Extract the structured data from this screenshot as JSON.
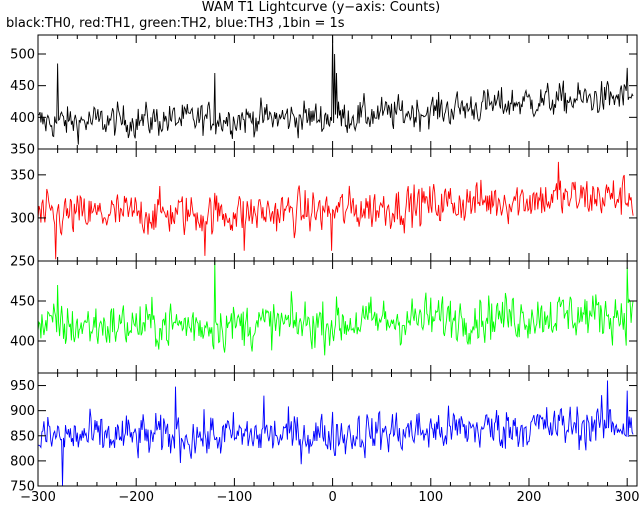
{
  "title": "WAM T1 Lightcurve (y−axis: Counts)",
  "subtitle": "black:TH0, red:TH1, green:TH2, blue:TH3 ,1bin = 1s",
  "chart_data": [
    {
      "type": "line",
      "series": [
        {
          "name": "TH0",
          "color": "#000000",
          "trend": [
            [
              -300,
              392
            ],
            [
              -200,
              395
            ],
            [
              -100,
              398
            ],
            [
              0,
              400
            ],
            [
              100,
              410
            ],
            [
              200,
              425
            ],
            [
              305,
              432
            ]
          ],
          "noise": 18,
          "spikes": [
            [
              0,
              530
            ],
            [
              2,
              500
            ],
            [
              4,
              470
            ],
            [
              -280,
              485
            ],
            [
              -120,
              470
            ],
            [
              300,
              478
            ]
          ]
        }
      ],
      "x": {
        "min": -300,
        "max": 310,
        "ticks": [
          -300,
          -200,
          -100,
          0,
          100,
          200,
          300
        ]
      },
      "ylim": [
        350,
        530
      ],
      "yticks": [
        350,
        400,
        450,
        500
      ]
    },
    {
      "type": "line",
      "series": [
        {
          "name": "TH1",
          "color": "#ff0000",
          "trend": [
            [
              -300,
              302
            ],
            [
              -200,
              305
            ],
            [
              -100,
              305
            ],
            [
              0,
              308
            ],
            [
              100,
              316
            ],
            [
              200,
              322
            ],
            [
              305,
              325
            ]
          ],
          "noise": 17,
          "spikes": [
            [
              -282,
              252
            ],
            [
              -130,
              256
            ],
            [
              -90,
              262
            ],
            [
              -1,
              262
            ],
            [
              230,
              365
            ]
          ]
        }
      ],
      "x": {
        "min": -300,
        "max": 310,
        "ticks": [
          -300,
          -200,
          -100,
          0,
          100,
          200,
          300
        ]
      },
      "ylim": [
        250,
        380
      ],
      "yticks": [
        250,
        300,
        350
      ]
    },
    {
      "type": "line",
      "series": [
        {
          "name": "TH2",
          "color": "#00ff00",
          "trend": [
            [
              -300,
              418
            ],
            [
              -200,
              420
            ],
            [
              -100,
              420
            ],
            [
              0,
              422
            ],
            [
              100,
              428
            ],
            [
              200,
              432
            ],
            [
              305,
              434
            ]
          ],
          "noise": 20,
          "spikes": [
            [
              -120,
              500
            ],
            [
              -280,
              470
            ],
            [
              300,
              492
            ]
          ]
        }
      ],
      "x": {
        "min": -300,
        "max": 310,
        "ticks": [
          -300,
          -200,
          -100,
          0,
          100,
          200,
          300
        ]
      },
      "ylim": [
        360,
        500
      ],
      "yticks": [
        400,
        450
      ]
    },
    {
      "type": "line",
      "series": [
        {
          "name": "TH3",
          "color": "#0000ff",
          "trend": [
            [
              -300,
              848
            ],
            [
              -200,
              848
            ],
            [
              -100,
              850
            ],
            [
              0,
              853
            ],
            [
              100,
              860
            ],
            [
              200,
              868
            ],
            [
              305,
              872
            ]
          ],
          "noise": 30,
          "spikes": [
            [
              -275,
              750
            ],
            [
              -160,
              948
            ],
            [
              -70,
              930
            ],
            [
              280,
              960
            ],
            [
              300,
              940
            ]
          ]
        }
      ],
      "x": {
        "min": -300,
        "max": 310,
        "ticks": [
          -300,
          -200,
          -100,
          0,
          100,
          200,
          300
        ]
      },
      "ylim": [
        750,
        975
      ],
      "yticks": [
        750,
        800,
        850,
        900,
        950
      ]
    }
  ]
}
